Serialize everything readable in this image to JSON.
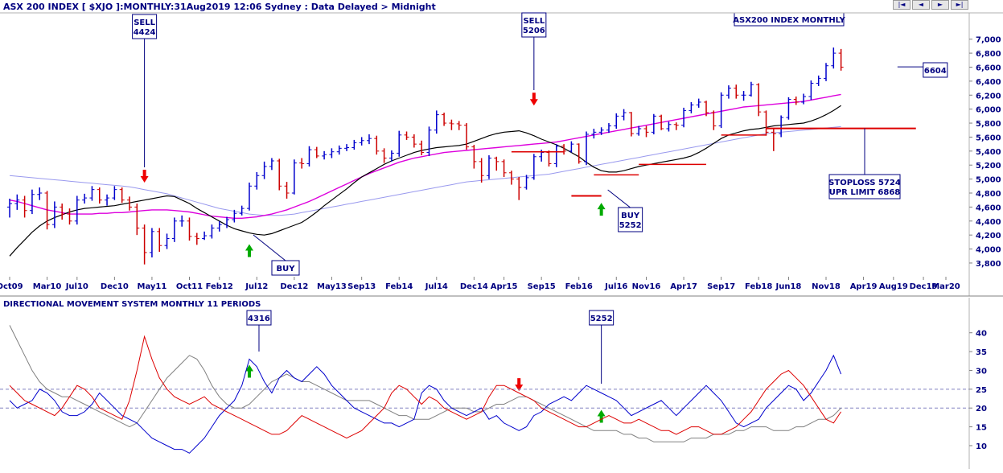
{
  "header": {
    "title": "ASX 200 INDEX [ $XJO ]:MONTHLY:31Aug2019 12:06 Sydney : Data Delayed > Midnight",
    "chart_label": "ASX200 INDEX MONTHLY",
    "indicator_title": "DIRECTIONAL MOVEMENT SYSTEM MONTHLY 11 PERIODS"
  },
  "nav_buttons": [
    "|◄",
    "◄",
    "►",
    "►|"
  ],
  "colors": {
    "up_bar": "#0000cc",
    "down_bar": "#cc0000",
    "ma_short": "#000000",
    "ma_medium": "#dd00dd",
    "ma_long": "#9999ee",
    "plus_di": "#0000cc",
    "minus_di": "#dd0000",
    "adx": "#808080",
    "arrow_up": "#00aa00",
    "arrow_down": "#ee0000",
    "annotation": "#000080"
  },
  "annotations": [
    {
      "id": "sell-1",
      "lines": [
        "SELL",
        "4424"
      ],
      "month": "2011-04"
    },
    {
      "id": "sell-2",
      "lines": [
        "SELL",
        "5206"
      ],
      "month": "2015-08"
    },
    {
      "id": "buy-1",
      "lines": [
        "BUY"
      ],
      "month": "2012-06"
    },
    {
      "id": "buy-2",
      "lines": [
        "BUY",
        "5252"
      ],
      "month": "2016-05"
    },
    {
      "id": "last",
      "lines": [
        "6604"
      ],
      "month": "2019-08"
    },
    {
      "id": "stoploss",
      "lines": [
        "STOPLOSS 5724",
        "UPR LIMIT 6868"
      ],
      "month": "2019-01"
    },
    {
      "id": "dm-4316",
      "lines": [
        "4316"
      ],
      "month": "2012-06"
    },
    {
      "id": "dm-5252",
      "lines": [
        "5252"
      ],
      "month": "2016-05"
    }
  ],
  "chart_data": [
    {
      "type": "ohlc",
      "title": "ASX200 INDEX MONTHLY",
      "x_tick_labels": [
        "Oct09",
        "Mar10",
        "Jul10",
        "Dec10",
        "May11",
        "Oct11",
        "Feb12",
        "Jul12",
        "Dec12",
        "May13",
        "Sep13",
        "Feb14",
        "Jul14",
        "Dec14",
        "Apr15",
        "Sep15",
        "Feb16",
        "Jul16",
        "Nov16",
        "Apr17",
        "Sep17",
        "Feb18",
        "Jun18",
        "Nov18",
        "Apr19",
        "Aug19",
        "Dec19",
        "Mar20"
      ],
      "y_tick_labels": [
        "3,800",
        "4,000",
        "4,200",
        "4,400",
        "4,600",
        "4,800",
        "5,000",
        "5,200",
        "5,400",
        "5,600",
        "5,800",
        "6,000",
        "6,200",
        "6,400",
        "6,600",
        "6,800",
        "7,000"
      ],
      "ylim": [
        3650,
        7100
      ],
      "x_start": "2009-10",
      "x_end": "2020-03",
      "close": [
        4650,
        4700,
        4550,
        4780,
        4800,
        4350,
        4600,
        4500,
        4400,
        4700,
        4730,
        4850,
        4700,
        4730,
        4850,
        4700,
        4600,
        4300,
        3950,
        4250,
        4050,
        4150,
        4400,
        4400,
        4180,
        4150,
        4190,
        4300,
        4350,
        4420,
        4510,
        4580,
        4900,
        5050,
        5180,
        5260,
        4900,
        4800,
        5230,
        5220,
        5420,
        5330,
        5350,
        5390,
        5440,
        5450,
        5520,
        5550,
        5580,
        5400,
        5300,
        5370,
        5630,
        5600,
        5500,
        5380,
        5700,
        5920,
        5800,
        5790,
        5770,
        5460,
        5250,
        5050,
        5300,
        5250,
        5090,
        5000,
        4880,
        5020,
        5320,
        5380,
        5220,
        5470,
        5400,
        5500,
        5250,
        5640,
        5670,
        5700,
        5760,
        5900,
        5950,
        5650,
        5720,
        5670,
        5900,
        5720,
        5780,
        5770,
        5980,
        6060,
        6100,
        5950,
        5760,
        6200,
        6300,
        6200,
        6200,
        6350,
        5960,
        5670,
        5650,
        5880,
        6140,
        6100,
        6180,
        6370,
        6440,
        6620,
        6800,
        6600
      ],
      "open": [
        4600,
        4650,
        4700,
        4550,
        4780,
        4800,
        4350,
        4600,
        4500,
        4400,
        4700,
        4730,
        4850,
        4700,
        4730,
        4850,
        4700,
        4600,
        4300,
        3950,
        4250,
        4050,
        4150,
        4400,
        4400,
        4180,
        4150,
        4190,
        4300,
        4350,
        4420,
        4510,
        4580,
        4900,
        5050,
        5180,
        5260,
        4900,
        4800,
        5230,
        5220,
        5420,
        5330,
        5350,
        5390,
        5440,
        5450,
        5520,
        5550,
        5580,
        5400,
        5300,
        5370,
        5630,
        5600,
        5500,
        5380,
        5700,
        5920,
        5800,
        5790,
        5770,
        5460,
        5250,
        5050,
        5300,
        5250,
        5090,
        5000,
        4880,
        5020,
        5320,
        5380,
        5220,
        5470,
        5400,
        5500,
        5250,
        5640,
        5670,
        5700,
        5760,
        5900,
        5950,
        5650,
        5720,
        5670,
        5900,
        5720,
        5780,
        5770,
        5980,
        6060,
        6100,
        5950,
        5760,
        6200,
        6300,
        6200,
        6200,
        6350,
        5960,
        5670,
        5650,
        5880,
        6140,
        6100,
        6180,
        6370,
        6440,
        6620,
        6800
      ],
      "high": [
        4720,
        4780,
        4760,
        4850,
        4880,
        4830,
        4680,
        4650,
        4580,
        4760,
        4790,
        4900,
        4880,
        4780,
        4900,
        4880,
        4750,
        4650,
        4350,
        4300,
        4300,
        4220,
        4450,
        4480,
        4450,
        4230,
        4250,
        4350,
        4400,
        4460,
        4560,
        4620,
        4950,
        5100,
        5250,
        5300,
        5290,
        4960,
        5280,
        5300,
        5470,
        5460,
        5400,
        5440,
        5480,
        5500,
        5560,
        5600,
        5640,
        5620,
        5440,
        5410,
        5690,
        5680,
        5640,
        5550,
        5750,
        5980,
        5950,
        5850,
        5830,
        5800,
        5490,
        5300,
        5340,
        5320,
        5280,
        5120,
        5030,
        5060,
        5360,
        5420,
        5410,
        5500,
        5500,
        5540,
        5510,
        5680,
        5720,
        5740,
        5800,
        5940,
        6000,
        5960,
        5760,
        5760,
        5930,
        5920,
        5820,
        5810,
        6020,
        6100,
        6150,
        6120,
        5980,
        6240,
        6340,
        6350,
        6260,
        6390,
        6370,
        5980,
        5720,
        5910,
        6170,
        6180,
        6220,
        6410,
        6480,
        6660,
        6880,
        6860
      ],
      "low": [
        4450,
        4560,
        4450,
        4500,
        4700,
        4280,
        4300,
        4420,
        4350,
        4350,
        4650,
        4690,
        4650,
        4620,
        4700,
        4660,
        4550,
        4200,
        3780,
        3880,
        3960,
        4000,
        4100,
        4320,
        4120,
        4060,
        4130,
        4150,
        4250,
        4300,
        4380,
        4480,
        4550,
        4850,
        5000,
        5130,
        4840,
        4720,
        4780,
        5150,
        5180,
        5300,
        5280,
        5300,
        5350,
        5400,
        5420,
        5480,
        5500,
        5350,
        5230,
        5250,
        5320,
        5560,
        5450,
        5340,
        5330,
        5650,
        5760,
        5700,
        5700,
        5420,
        5150,
        4950,
        5000,
        5120,
        5030,
        4920,
        4700,
        4850,
        4990,
        5250,
        5180,
        5170,
        5350,
        5380,
        5220,
        5200,
        5580,
        5630,
        5660,
        5720,
        5840,
        5610,
        5620,
        5600,
        5640,
        5700,
        5680,
        5700,
        5740,
        5940,
        6020,
        5900,
        5700,
        5730,
        6150,
        6150,
        6120,
        6180,
        5900,
        5620,
        5400,
        5600,
        5850,
        6060,
        6070,
        6130,
        6330,
        6400,
        6580,
        6550
      ],
      "ma_short": [
        3900,
        4020,
        4130,
        4240,
        4330,
        4400,
        4450,
        4490,
        4530,
        4560,
        4580,
        4590,
        4600,
        4610,
        4620,
        4640,
        4660,
        4680,
        4700,
        4720,
        4740,
        4760,
        4750,
        4700,
        4650,
        4580,
        4520,
        4460,
        4400,
        4340,
        4290,
        4260,
        4230,
        4210,
        4200,
        4220,
        4260,
        4300,
        4340,
        4380,
        4450,
        4530,
        4620,
        4700,
        4780,
        4860,
        4950,
        5030,
        5090,
        5150,
        5210,
        5260,
        5300,
        5340,
        5380,
        5410,
        5430,
        5450,
        5460,
        5470,
        5480,
        5500,
        5540,
        5580,
        5620,
        5650,
        5670,
        5680,
        5690,
        5660,
        5620,
        5570,
        5530,
        5490,
        5440,
        5380,
        5320,
        5240,
        5170,
        5120,
        5100,
        5100,
        5120,
        5150,
        5180,
        5200,
        5220,
        5240,
        5260,
        5280,
        5300,
        5330,
        5380,
        5440,
        5510,
        5580,
        5630,
        5660,
        5690,
        5710,
        5720,
        5740,
        5760,
        5770,
        5780,
        5790,
        5800,
        5830,
        5870,
        5920,
        5980,
        6050
      ],
      "ma_medium": [
        4700,
        4680,
        4650,
        4620,
        4590,
        4560,
        4540,
        4520,
        4500,
        4500,
        4500,
        4500,
        4510,
        4510,
        4520,
        4520,
        4530,
        4540,
        4550,
        4560,
        4560,
        4560,
        4550,
        4540,
        4530,
        4510,
        4490,
        4470,
        4460,
        4450,
        4440,
        4440,
        4450,
        4460,
        4480,
        4500,
        4530,
        4560,
        4600,
        4640,
        4680,
        4730,
        4780,
        4830,
        4880,
        4930,
        4980,
        5030,
        5080,
        5120,
        5160,
        5200,
        5240,
        5270,
        5300,
        5320,
        5340,
        5360,
        5380,
        5390,
        5400,
        5410,
        5420,
        5430,
        5440,
        5450,
        5460,
        5470,
        5480,
        5490,
        5500,
        5510,
        5520,
        5530,
        5550,
        5570,
        5590,
        5610,
        5630,
        5650,
        5670,
        5690,
        5710,
        5730,
        5750,
        5770,
        5790,
        5810,
        5830,
        5850,
        5870,
        5890,
        5910,
        5930,
        5950,
        5970,
        5990,
        6010,
        6030,
        6040,
        6050,
        6060,
        6070,
        6080,
        6090,
        6100,
        6110,
        6130,
        6150,
        6170,
        6190,
        6210
      ],
      "ma_long": [
        5050,
        5040,
        5030,
        5020,
        5010,
        5000,
        4990,
        4980,
        4970,
        4960,
        4950,
        4940,
        4930,
        4920,
        4910,
        4900,
        4890,
        4870,
        4850,
        4830,
        4810,
        4790,
        4760,
        4730,
        4700,
        4670,
        4640,
        4610,
        4580,
        4560,
        4540,
        4520,
        4500,
        4490,
        4480,
        4480,
        4480,
        4490,
        4500,
        4520,
        4540,
        4560,
        4580,
        4600,
        4620,
        4640,
        4660,
        4680,
        4700,
        4720,
        4740,
        4760,
        4780,
        4800,
        4820,
        4840,
        4860,
        4880,
        4900,
        4920,
        4940,
        4960,
        4970,
        4980,
        4990,
        5000,
        5010,
        5020,
        5030,
        5040,
        5050,
        5060,
        5070,
        5090,
        5110,
        5130,
        5150,
        5170,
        5190,
        5210,
        5230,
        5250,
        5270,
        5290,
        5310,
        5330,
        5350,
        5370,
        5390,
        5410,
        5430,
        5450,
        5470,
        5490,
        5510,
        5530,
        5550,
        5570,
        5590,
        5610,
        5630,
        5650,
        5660,
        5670,
        5680,
        5690,
        5700,
        5710,
        5720,
        5730,
        5740,
        5750
      ]
    },
    {
      "type": "line",
      "title": "DIRECTIONAL MOVEMENT SYSTEM MONTHLY 11 PERIODS",
      "y_tick_labels": [
        "10",
        "15",
        "20",
        "25",
        "30",
        "35",
        "40"
      ],
      "ylim": [
        7,
        44
      ],
      "reference_lines": [
        20,
        25
      ],
      "x_start": "2009-10",
      "series": [
        {
          "key": "adx",
          "values": [
            42,
            38,
            34,
            30,
            27,
            25,
            24,
            23,
            23,
            22,
            21,
            20,
            19,
            18,
            17,
            16,
            15,
            16,
            19,
            22,
            25,
            28,
            30,
            32,
            34,
            33,
            30,
            26,
            23,
            21,
            20,
            20,
            21,
            23,
            25,
            27,
            28,
            29,
            28,
            27,
            27,
            26,
            25,
            24,
            23,
            22,
            22,
            22,
            22,
            21,
            20,
            19,
            18,
            18,
            17,
            17,
            17,
            18,
            19,
            20,
            20,
            20,
            19,
            19,
            20,
            21,
            21,
            22,
            23,
            23,
            22,
            21,
            20,
            19,
            18,
            17,
            16,
            15,
            14,
            14,
            14,
            14,
            13,
            13,
            12,
            12,
            11,
            11,
            11,
            11,
            11,
            12,
            12,
            12,
            13,
            13,
            13,
            14,
            14,
            15,
            15,
            15,
            14,
            14,
            14,
            15,
            15,
            16,
            17,
            17,
            18,
            20
          ]
        },
        {
          "key": "plus_di",
          "values": [
            22,
            20,
            21,
            22,
            25,
            24,
            22,
            19,
            18,
            18,
            19,
            21,
            24,
            22,
            20,
            18,
            17,
            16,
            14,
            12,
            11,
            10,
            9,
            9,
            8,
            10,
            12,
            15,
            18,
            20,
            22,
            26,
            33,
            31,
            27,
            24,
            28,
            30,
            28,
            27,
            29,
            31,
            29,
            26,
            24,
            22,
            20,
            19,
            18,
            17,
            16,
            16,
            15,
            16,
            17,
            24,
            26,
            25,
            22,
            20,
            19,
            18,
            19,
            20,
            17,
            18,
            16,
            15,
            14,
            15,
            18,
            19,
            21,
            22,
            23,
            22,
            24,
            26,
            25,
            24,
            23,
            22,
            20,
            18,
            19,
            20,
            21,
            22,
            20,
            18,
            20,
            22,
            24,
            26,
            24,
            22,
            19,
            16,
            15,
            16,
            17,
            20,
            22,
            24,
            26,
            25,
            22,
            24,
            27,
            30,
            34,
            29
          ]
        },
        {
          "key": "minus_di",
          "values": [
            26,
            24,
            22,
            21,
            20,
            19,
            18,
            20,
            23,
            26,
            25,
            23,
            20,
            19,
            18,
            17,
            22,
            30,
            39,
            33,
            28,
            25,
            23,
            22,
            21,
            22,
            23,
            21,
            20,
            19,
            18,
            17,
            16,
            15,
            14,
            13,
            13,
            14,
            16,
            18,
            17,
            16,
            15,
            14,
            13,
            12,
            13,
            14,
            16,
            18,
            20,
            24,
            26,
            25,
            23,
            21,
            23,
            22,
            20,
            19,
            18,
            17,
            18,
            19,
            23,
            26,
            26,
            25,
            24,
            23,
            22,
            20,
            19,
            18,
            17,
            16,
            15,
            15,
            16,
            17,
            18,
            17,
            16,
            16,
            17,
            16,
            15,
            14,
            14,
            13,
            14,
            15,
            15,
            14,
            13,
            13,
            14,
            15,
            17,
            19,
            22,
            25,
            27,
            29,
            30,
            28,
            26,
            23,
            20,
            17,
            16,
            19
          ]
        }
      ]
    }
  ]
}
